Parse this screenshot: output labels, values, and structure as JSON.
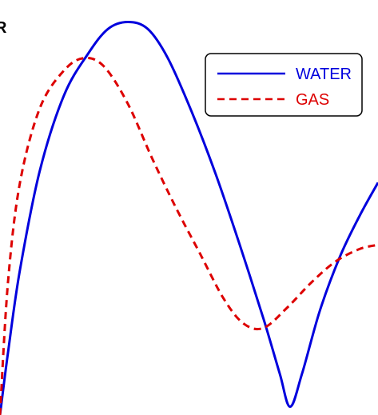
{
  "chart_data": {
    "type": "line",
    "corner_label": "R",
    "legend_position": "top-right",
    "grid": false,
    "xlim": [
      0,
      473
    ],
    "ylim": [
      0,
      1
    ],
    "series": [
      {
        "name": "WATER",
        "color": "#0000dd",
        "style": "solid",
        "x": [
          0,
          10,
          25,
          50,
          80,
          110,
          135,
          160,
          185,
          210,
          240,
          270,
          300,
          330,
          350,
          363,
          378,
          400,
          425,
          450,
          473
        ],
        "y": [
          0.0,
          0.15,
          0.35,
          0.59,
          0.77,
          0.87,
          0.93,
          0.947,
          0.93,
          0.86,
          0.73,
          0.58,
          0.41,
          0.23,
          0.1,
          0.02,
          0.1,
          0.25,
          0.38,
          0.48,
          0.56
        ]
      },
      {
        "name": "GAS",
        "color": "#dd0000",
        "style": "dashed",
        "x": [
          0,
          10,
          25,
          50,
          80,
          105,
          130,
          160,
          190,
          220,
          250,
          280,
          305,
          330,
          360,
          390,
          420,
          450,
          473
        ],
        "y": [
          0.0,
          0.32,
          0.56,
          0.74,
          0.83,
          0.86,
          0.84,
          0.75,
          0.62,
          0.5,
          0.39,
          0.28,
          0.22,
          0.21,
          0.26,
          0.32,
          0.37,
          0.4,
          0.41
        ]
      }
    ]
  }
}
